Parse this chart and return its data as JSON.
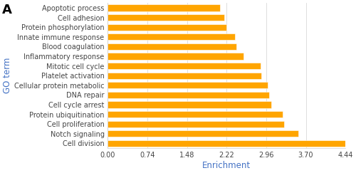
{
  "categories": [
    "Cell division",
    "Notch signaling",
    "Cell proliferation",
    "Protein ubiquitination",
    "Cell cycle arrest",
    "DNA repair",
    "Cellular protein metabolic",
    "Platelet activation",
    "Mitotic cell cycle",
    "Inflammatory response",
    "Blood coagulation",
    "Innate immune response",
    "Protein phosphorylation",
    "Cell adhesion",
    "Apoptotic process"
  ],
  "values": [
    4.44,
    3.56,
    3.3,
    3.27,
    3.06,
    3.01,
    2.99,
    2.87,
    2.85,
    2.54,
    2.4,
    2.37,
    2.22,
    2.18,
    2.1
  ],
  "bar_color": "#FFA500",
  "xlabel": "Enrichment",
  "ylabel": "GO term",
  "panel_label": "A",
  "xlim": [
    0,
    4.44
  ],
  "xticks": [
    0.0,
    0.74,
    1.48,
    2.22,
    2.96,
    3.7,
    4.44
  ],
  "xtick_labels": [
    "0.00",
    "0.74",
    "1.48",
    "2.22",
    "2.96",
    "3.70",
    "4.44"
  ],
  "bar_color_orange": "#FFA500",
  "bar_edge_color": "white",
  "background_color": "#ffffff",
  "grid_color": "#d0d0d0",
  "ylabel_color": "#4472c4",
  "xlabel_color": "#4472c4",
  "tick_label_color": "#444444",
  "panel_label_fontsize": 13,
  "axis_label_fontsize": 8.5,
  "tick_label_fontsize": 7,
  "category_fontsize": 7,
  "bar_height": 0.68
}
